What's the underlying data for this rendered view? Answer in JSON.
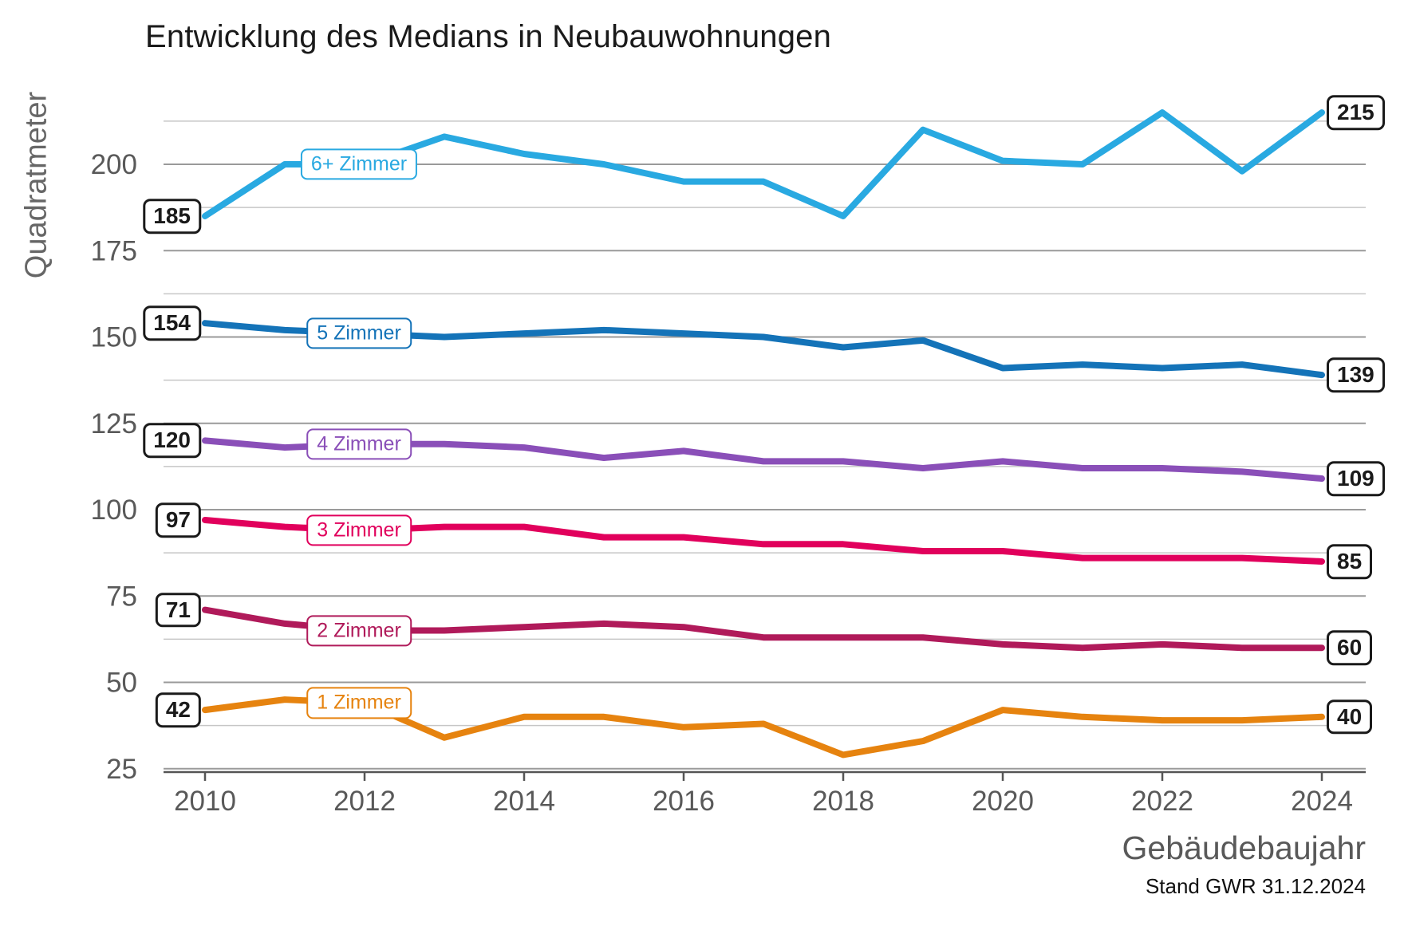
{
  "footnote": "Stand GWR 31.12.2024",
  "chart_data": {
    "type": "line",
    "title": "Entwicklung des Medians in Neubauwohnungen",
    "xlabel": "Gebäudebaujahr",
    "ylabel": "Quadratmeter",
    "x": [
      2010,
      2011,
      2012,
      2013,
      2014,
      2015,
      2016,
      2017,
      2018,
      2019,
      2020,
      2021,
      2022,
      2023,
      2024
    ],
    "x_ticks": [
      "2010",
      "2012",
      "2014",
      "2016",
      "2018",
      "2020",
      "2022",
      "2024"
    ],
    "y_ticks": [
      200,
      175,
      150,
      125,
      100,
      75,
      50,
      25
    ],
    "ylim": [
      22,
      218
    ],
    "grid": "horizontal, minor lines every 12.5",
    "legend_position": "inline labels on lines at ~2012",
    "series": [
      {
        "name": "6+ Zimmer",
        "color": "#29A9E1",
        "values": [
          185,
          200,
          200,
          208,
          203,
          200,
          195,
          195,
          185,
          210,
          201,
          200,
          215,
          198,
          215
        ],
        "start_label": "185",
        "end_label": "215"
      },
      {
        "name": "5 Zimmer",
        "color": "#1473B8",
        "values": [
          154,
          152,
          151,
          150,
          151,
          152,
          151,
          150,
          147,
          149,
          141,
          142,
          141,
          142,
          139
        ],
        "start_label": "154",
        "end_label": "139"
      },
      {
        "name": "4 Zimmer",
        "color": "#8A4FB8",
        "values": [
          120,
          118,
          119,
          119,
          118,
          115,
          117,
          114,
          114,
          112,
          114,
          112,
          112,
          111,
          109
        ],
        "start_label": "120",
        "end_label": "109"
      },
      {
        "name": "3 Zimmer",
        "color": "#E1005C",
        "values": [
          97,
          95,
          94,
          95,
          95,
          92,
          92,
          90,
          90,
          88,
          88,
          86,
          86,
          86,
          85
        ],
        "start_label": "97",
        "end_label": "85"
      },
      {
        "name": "2 Zimmer",
        "color": "#B01A5A",
        "values": [
          71,
          67,
          65,
          65,
          66,
          67,
          66,
          63,
          63,
          63,
          61,
          60,
          61,
          60,
          60
        ],
        "start_label": "71",
        "end_label": "60"
      },
      {
        "name": "1 Zimmer",
        "color": "#E6830F",
        "values": [
          42,
          45,
          44,
          34,
          40,
          40,
          37,
          38,
          29,
          33,
          42,
          40,
          39,
          39,
          40
        ],
        "start_label": "42",
        "end_label": "40"
      }
    ]
  }
}
